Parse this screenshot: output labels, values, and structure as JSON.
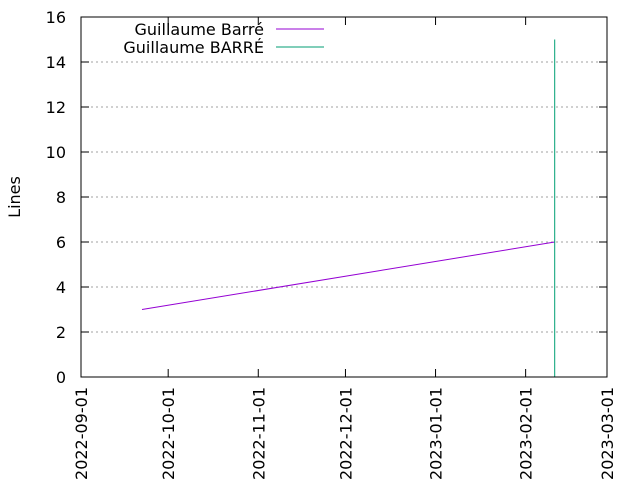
{
  "chart_data": {
    "type": "line",
    "ylabel": "Lines",
    "xlabel": "",
    "title": "",
    "x_axis_type": "date",
    "xlim": [
      "2022-09-01",
      "2023-03-01"
    ],
    "ylim": [
      0,
      16
    ],
    "x_ticks": [
      "2022-09-01",
      "2022-10-01",
      "2022-11-01",
      "2022-12-01",
      "2023-01-01",
      "2023-02-01",
      "2023-03-01"
    ],
    "y_ticks": [
      0,
      2,
      4,
      6,
      8,
      10,
      12,
      14,
      16
    ],
    "grid": "horizontal dotted",
    "legend_position": "top-left",
    "series": [
      {
        "name": "Guillaume Barré",
        "color": "#9400d3",
        "points": [
          {
            "x": "2022-09-22",
            "y": 3
          },
          {
            "x": "2023-02-11",
            "y": 6
          }
        ]
      },
      {
        "name": "Guillaume BARRÉ",
        "color": "#009e73",
        "points": [
          {
            "x": "2023-02-11",
            "y": 0
          },
          {
            "x": "2023-02-11",
            "y": 15
          }
        ]
      }
    ]
  }
}
